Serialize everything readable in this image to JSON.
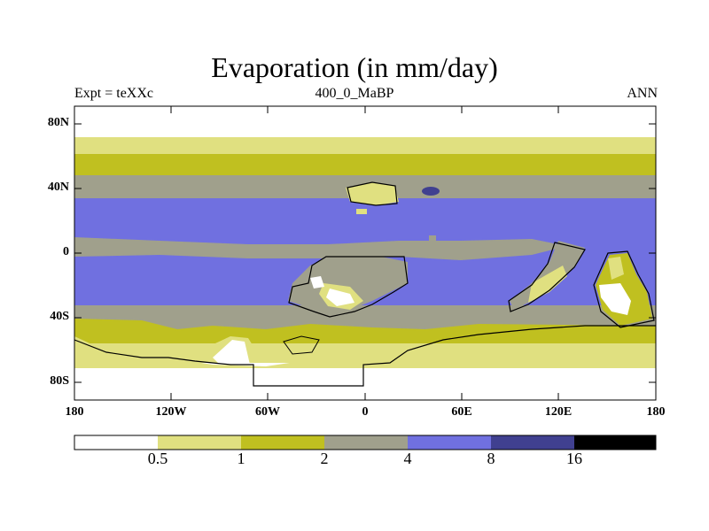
{
  "title": "Evaporation (in mm/day)",
  "left_label": "Expt = teXXc",
  "center_label": "400_0_MaBP",
  "right_label": "ANN",
  "lat_ticks": [
    "80N",
    "40N",
    "0",
    "40S",
    "80S"
  ],
  "lon_ticks": [
    "180",
    "120W",
    "60W",
    "0",
    "60E",
    "120E",
    "180"
  ],
  "colorbar": {
    "labels": [
      "0.5",
      "1",
      "2",
      "4",
      "8",
      "16"
    ],
    "colors": [
      "#ffffff",
      "#e0e080",
      "#c0c020",
      "#a0a08c",
      "#7070e0",
      "#404090",
      "#000000"
    ]
  },
  "chart_data": {
    "type": "filled-contour-map",
    "variable": "Evaporation",
    "units": "mm/day",
    "levels": [
      0.5,
      1,
      2,
      4,
      8,
      16
    ],
    "lat_range": [
      -90,
      90
    ],
    "lon_range": [
      -180,
      180
    ]
  }
}
